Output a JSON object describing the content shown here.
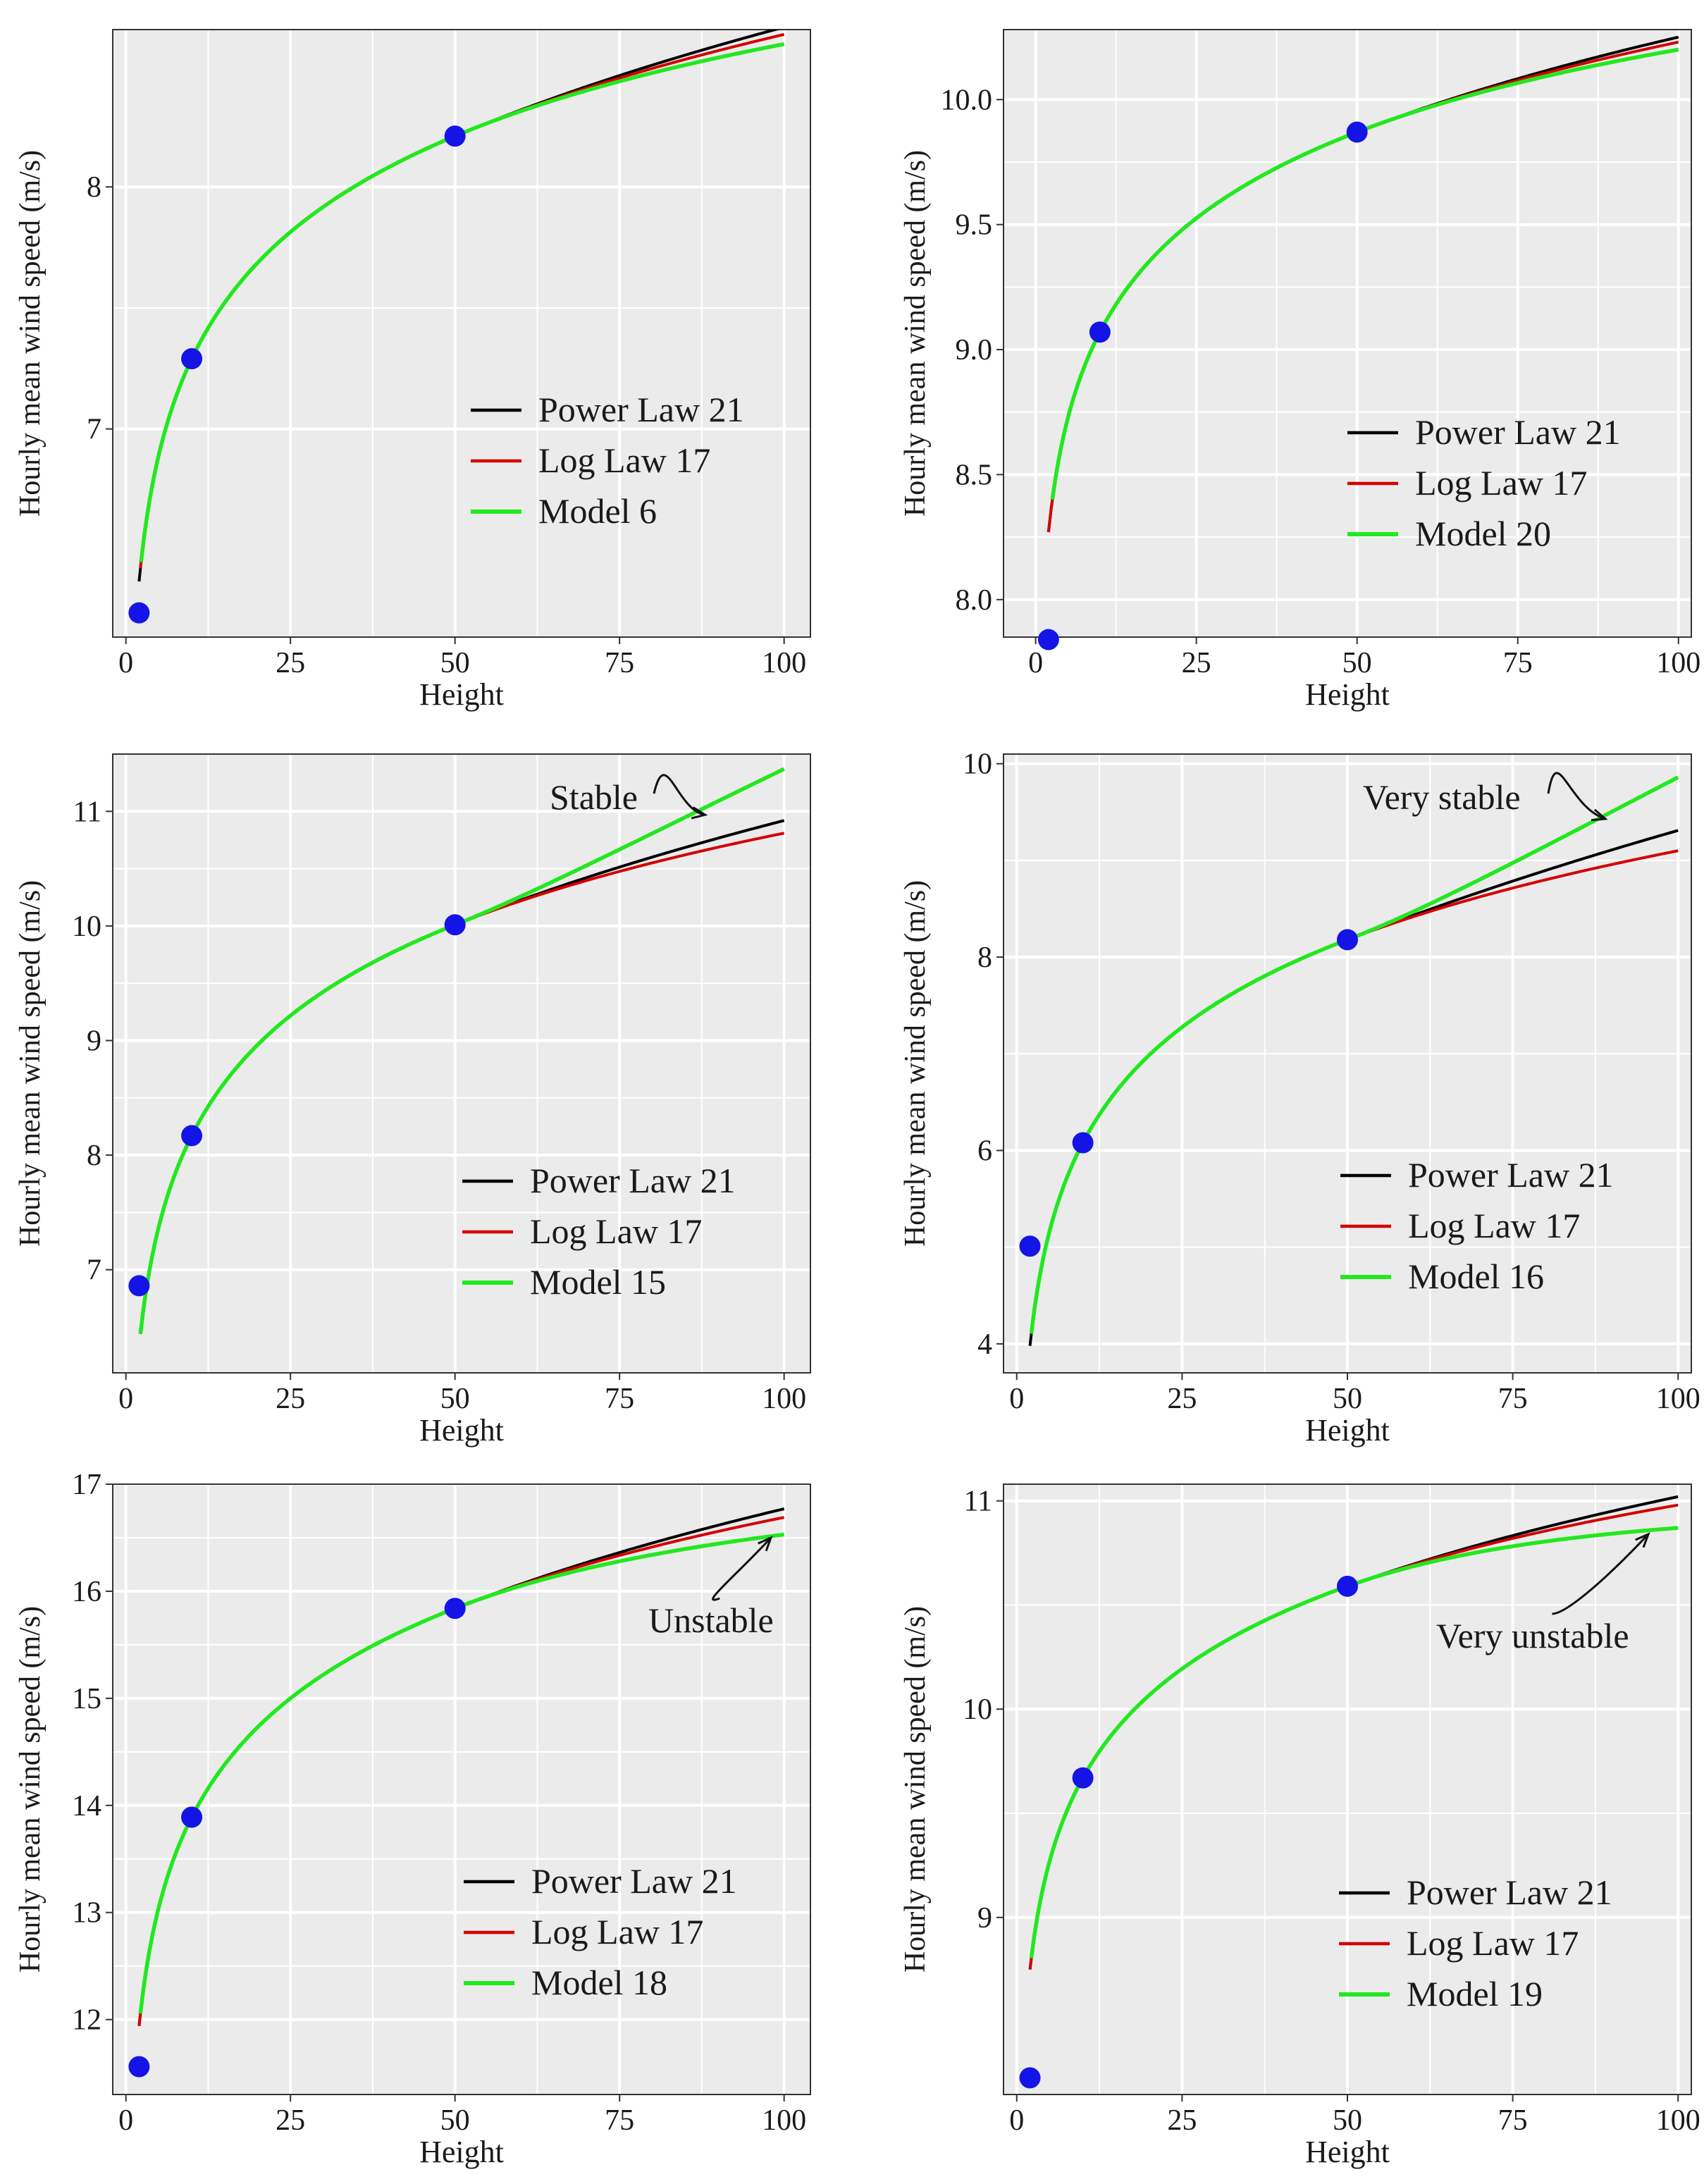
{
  "chart_data": [
    {
      "type": "line",
      "panel": "top-left",
      "xlabel": "Height",
      "ylabel": "Hourly mean wind speed (m/s)",
      "xlim": [
        -2,
        104
      ],
      "ylim": [
        6.14,
        8.65
      ],
      "xticks": [
        0,
        25,
        50,
        75,
        100
      ],
      "xtick_labels": [
        "0",
        "25",
        "50",
        "75",
        "100"
      ],
      "yticks": [
        7,
        8
      ],
      "ytick_labels": [
        "7",
        "8"
      ],
      "observations": {
        "x": [
          2,
          10,
          50
        ],
        "y": [
          6.24,
          7.29,
          8.21
        ]
      },
      "series": [
        {
          "name": "Power Law 21",
          "color": "#000000",
          "x_start": 2,
          "x": [
            10,
            50
          ],
          "y": [
            7.29,
            8.21
          ],
          "end": 8.66
        },
        {
          "name": "Log Law 17",
          "color": "#d40000",
          "x_start": 2.2,
          "x": [
            10,
            50
          ],
          "y": [
            7.29,
            8.21
          ],
          "end": 8.63
        },
        {
          "name": "Model 6",
          "color": "#22e81f",
          "x_start": 2.3,
          "x": [
            10,
            50
          ],
          "y": [
            7.29,
            8.21
          ],
          "end": 8.59
        }
      ],
      "legend": {
        "position": "center-right",
        "entries": [
          "Power Law 21",
          "Log Law 17",
          "Model 6"
        ]
      },
      "grid": true
    },
    {
      "type": "line",
      "panel": "top-right",
      "xlabel": "Height",
      "ylabel": "Hourly mean wind speed (m/s)",
      "xlim": [
        -5,
        102
      ],
      "ylim": [
        7.85,
        10.28
      ],
      "xticks": [
        0,
        25,
        50,
        75,
        100
      ],
      "xtick_labels": [
        "0",
        "25",
        "50",
        "75",
        "100"
      ],
      "yticks": [
        8.0,
        8.5,
        9.0,
        9.5,
        10.0
      ],
      "ytick_labels": [
        "8.0",
        "8.5",
        "9.0",
        "9.5",
        "10.0"
      ],
      "observations": {
        "x": [
          2,
          10,
          50
        ],
        "y": [
          7.84,
          9.07,
          9.87
        ]
      },
      "series": [
        {
          "name": "Power Law 21",
          "color": "#000000",
          "x_start": 2,
          "x": [
            10,
            50
          ],
          "y": [
            9.07,
            9.87
          ],
          "end": 10.25
        },
        {
          "name": "Log Law 17",
          "color": "#d40000",
          "x_start": 2,
          "x": [
            10,
            50
          ],
          "y": [
            9.07,
            9.87
          ],
          "end": 10.23
        },
        {
          "name": "Model 20",
          "color": "#22e81f",
          "x_start": 2.6,
          "x": [
            10,
            50
          ],
          "y": [
            9.07,
            9.87
          ],
          "end": 10.2
        }
      ],
      "legend": {
        "position": "center-right",
        "entries": [
          "Power Law 21",
          "Log Law 17",
          "Model 20"
        ]
      },
      "grid": true
    },
    {
      "type": "line",
      "panel": "middle-left",
      "xlabel": "Height",
      "ylabel": "Hourly mean wind speed (m/s)",
      "xlim": [
        -2,
        104
      ],
      "ylim": [
        6.1,
        11.5
      ],
      "xticks": [
        0,
        25,
        50,
        75,
        100
      ],
      "xtick_labels": [
        "0",
        "25",
        "50",
        "75",
        "100"
      ],
      "yticks": [
        7,
        8,
        9,
        10,
        11
      ],
      "ytick_labels": [
        "7",
        "8",
        "9",
        "10",
        "11"
      ],
      "observations": {
        "x": [
          2,
          10,
          50
        ],
        "y": [
          6.86,
          8.17,
          10.01
        ]
      },
      "series": [
        {
          "name": "Power Law 21",
          "color": "#000000",
          "x_start": 2.5,
          "x": [
            10,
            50
          ],
          "y": [
            8.17,
            10.01
          ],
          "end": 10.92
        },
        {
          "name": "Log Law 17",
          "color": "#d40000",
          "x_start": 2.5,
          "x": [
            10,
            50
          ],
          "y": [
            8.17,
            10.01
          ],
          "end": 10.81
        },
        {
          "name": "Model 15",
          "color": "#22e81f",
          "x_start": 2.2,
          "x": [
            10,
            50
          ],
          "y": [
            8.17,
            10.01
          ],
          "end": 11.37
        }
      ],
      "legend": {
        "position": "center-right",
        "entries": [
          "Power Law 21",
          "Log Law 17",
          "Model 15"
        ]
      },
      "annotations": [
        {
          "text": "Stable",
          "points_to": {
            "x": 88,
            "y": 10.97
          }
        }
      ],
      "grid": true
    },
    {
      "type": "line",
      "panel": "middle-right",
      "xlabel": "Height",
      "ylabel": "Hourly mean wind speed (m/s)",
      "xlim": [
        -2,
        102
      ],
      "ylim": [
        3.7,
        10.1
      ],
      "xticks": [
        0,
        25,
        50,
        75,
        100
      ],
      "xtick_labels": [
        "0",
        "25",
        "50",
        "75",
        "100"
      ],
      "yticks": [
        4,
        6,
        8,
        10
      ],
      "ytick_labels": [
        "4",
        "6",
        "8",
        "10"
      ],
      "observations": {
        "x": [
          2,
          10,
          50
        ],
        "y": [
          5.01,
          6.08,
          8.18
        ]
      },
      "series": [
        {
          "name": "Power Law 21",
          "color": "#000000",
          "x_start": 2,
          "x": [
            10,
            50
          ],
          "y": [
            6.08,
            8.18
          ],
          "end": 9.31
        },
        {
          "name": "Log Law 17",
          "color": "#d40000",
          "x_start": 2.2,
          "x": [
            10,
            50
          ],
          "y": [
            6.08,
            8.18
          ],
          "end": 9.1
        },
        {
          "name": "Model 16",
          "color": "#22e81f",
          "x_start": 2.2,
          "x": [
            10,
            50
          ],
          "y": [
            6.08,
            8.18
          ],
          "end": 9.86
        }
      ],
      "legend": {
        "position": "bottom-right",
        "entries": [
          "Power Law 21",
          "Log Law 17",
          "Model 16"
        ]
      },
      "annotations": [
        {
          "text": "Very stable",
          "points_to": {
            "x": 89,
            "y": 9.43
          }
        }
      ],
      "grid": true
    },
    {
      "type": "line",
      "panel": "bottom-left",
      "xlabel": "Height",
      "ylabel": "Hourly mean wind speed (m/s)",
      "xlim": [
        -2,
        104
      ],
      "ylim": [
        11.3,
        17.0
      ],
      "xticks": [
        0,
        25,
        50,
        75,
        100
      ],
      "xtick_labels": [
        "0",
        "25",
        "50",
        "75",
        "100"
      ],
      "yticks": [
        12,
        13,
        14,
        15,
        16,
        17
      ],
      "ytick_labels": [
        "12",
        "13",
        "14",
        "15",
        "16",
        "17"
      ],
      "observations": {
        "x": [
          2,
          10,
          50
        ],
        "y": [
          11.56,
          13.89,
          15.84
        ]
      },
      "series": [
        {
          "name": "Power Law 21",
          "color": "#000000",
          "x_start": 2,
          "x": [
            10,
            50
          ],
          "y": [
            13.89,
            15.84
          ],
          "end": 16.77
        },
        {
          "name": "Log Law 17",
          "color": "#d40000",
          "x_start": 2,
          "x": [
            10,
            50
          ],
          "y": [
            13.89,
            15.84
          ],
          "end": 16.69
        },
        {
          "name": "Model 18",
          "color": "#22e81f",
          "x_start": 2.2,
          "x": [
            10,
            50
          ],
          "y": [
            13.89,
            15.84
          ],
          "end": 16.53
        }
      ],
      "legend": {
        "position": "bottom-right",
        "entries": [
          "Power Law 21",
          "Log Law 17",
          "Model 18"
        ]
      },
      "annotations": [
        {
          "text": "Unstable",
          "points_to": {
            "x": 98,
            "y": 16.5
          }
        }
      ],
      "grid": true
    },
    {
      "type": "line",
      "panel": "bottom-right",
      "xlabel": "Height",
      "ylabel": "Hourly mean wind speed (m/s)",
      "xlim": [
        -2,
        102
      ],
      "ylim": [
        8.15,
        11.08
      ],
      "xticks": [
        0,
        25,
        50,
        75,
        100
      ],
      "xtick_labels": [
        "0",
        "25",
        "50",
        "75",
        "100"
      ],
      "yticks": [
        9,
        10,
        11
      ],
      "ytick_labels": [
        "9",
        "10",
        "11"
      ],
      "observations": {
        "x": [
          2,
          10,
          50
        ],
        "y": [
          8.23,
          9.67,
          10.59
        ]
      },
      "series": [
        {
          "name": "Power Law 21",
          "color": "#000000",
          "x_start": 2,
          "x": [
            10,
            50
          ],
          "y": [
            9.67,
            10.59
          ],
          "end": 11.02
        },
        {
          "name": "Log Law 17",
          "color": "#d40000",
          "x_start": 2,
          "x": [
            10,
            50
          ],
          "y": [
            9.67,
            10.59
          ],
          "end": 10.98
        },
        {
          "name": "Model 19",
          "color": "#22e81f",
          "x_start": 2.2,
          "x": [
            10,
            50
          ],
          "y": [
            9.67,
            10.59
          ],
          "end": 10.87
        }
      ],
      "legend": {
        "position": "bottom-right",
        "entries": [
          "Power Law 21",
          "Log Law 17",
          "Model 19"
        ]
      },
      "annotations": [
        {
          "text": "Very unstable",
          "points_to": {
            "x": 95.5,
            "y": 10.84
          }
        }
      ],
      "grid": true
    }
  ]
}
